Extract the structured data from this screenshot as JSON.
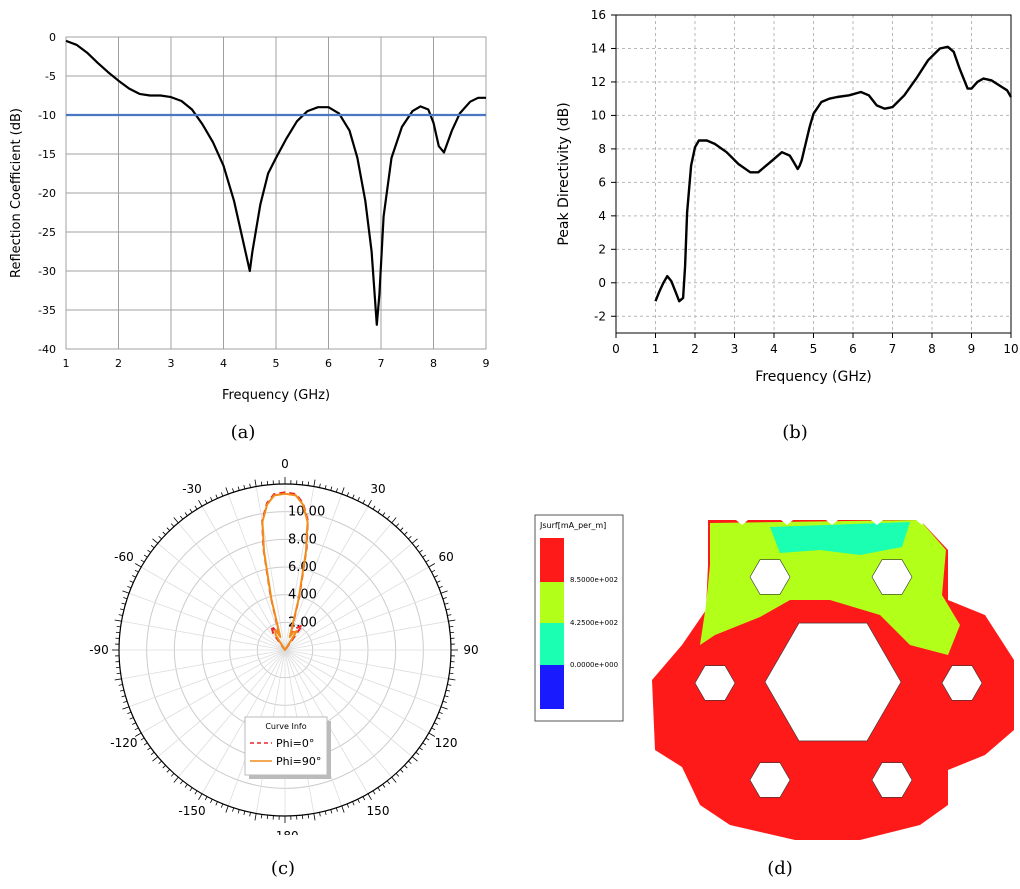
{
  "captions": {
    "a": "(a)",
    "b": "(b)",
    "c": "(c)",
    "d": "(d)"
  },
  "chart_data": [
    {
      "id": "a",
      "type": "line",
      "xlabel": "Frequency (GHz)",
      "ylabel": "Reflection Coefficient (dB)",
      "xlim": [
        1,
        9
      ],
      "ylim": [
        -40,
        0
      ],
      "xticks": [
        1,
        2,
        3,
        4,
        5,
        6,
        7,
        8,
        9
      ],
      "yticks": [
        0,
        -5,
        -10,
        -15,
        -20,
        -25,
        -30,
        -35,
        -40
      ],
      "grid": true,
      "series": [
        {
          "color": "#000000",
          "x": [
            1,
            1.2,
            1.4,
            1.6,
            1.8,
            2.0,
            2.2,
            2.4,
            2.6,
            2.8,
            3.0,
            3.2,
            3.4,
            3.6,
            3.8,
            4.0,
            4.2,
            4.35,
            4.5,
            4.55,
            4.7,
            4.85,
            5.0,
            5.2,
            5.4,
            5.6,
            5.8,
            6.0,
            6.2,
            6.4,
            6.55,
            6.7,
            6.82,
            6.92,
            6.97,
            7.05,
            7.2,
            7.4,
            7.6,
            7.75,
            7.9,
            8.0,
            8.1,
            8.2,
            8.35,
            8.5,
            8.7,
            8.85,
            9.0
          ],
          "y": [
            -0.5,
            -1.0,
            -2.0,
            -3.3,
            -4.5,
            -5.6,
            -6.6,
            -7.3,
            -7.5,
            -7.5,
            -7.7,
            -8.2,
            -9.3,
            -11.2,
            -13.5,
            -16.5,
            -21.0,
            -25.5,
            -30.0,
            -27.5,
            -21.5,
            -17.5,
            -15.5,
            -13.0,
            -10.8,
            -9.5,
            -9.0,
            -9.0,
            -9.8,
            -12.0,
            -15.5,
            -21.0,
            -27.5,
            -36.9,
            -33.0,
            -23.0,
            -15.5,
            -11.5,
            -9.5,
            -8.9,
            -9.3,
            -11.0,
            -14.0,
            -14.8,
            -12.0,
            -9.8,
            -8.3,
            -7.8,
            -7.8
          ]
        },
        {
          "color": "#4a78c0",
          "x": [
            1,
            9
          ],
          "y": [
            -10,
            -10
          ]
        }
      ]
    },
    {
      "id": "b",
      "type": "line",
      "xlabel": "Frequency (GHz)",
      "ylabel": "Peak Directivity (dB)",
      "xlim": [
        0,
        10
      ],
      "ylim": [
        -3,
        16
      ],
      "xticks": [
        0,
        1,
        2,
        3,
        4,
        5,
        6,
        7,
        8,
        9,
        10
      ],
      "yticks": [
        -2,
        0,
        2,
        4,
        6,
        8,
        10,
        12,
        14,
        16
      ],
      "grid": true,
      "series": [
        {
          "color": "#000000",
          "x": [
            1.0,
            1.1,
            1.2,
            1.3,
            1.4,
            1.5,
            1.6,
            1.7,
            1.75,
            1.8,
            1.9,
            2.0,
            2.1,
            2.3,
            2.5,
            2.8,
            3.1,
            3.4,
            3.6,
            3.9,
            4.2,
            4.4,
            4.5,
            4.6,
            4.65,
            4.7,
            4.8,
            4.9,
            5.0,
            5.2,
            5.4,
            5.6,
            5.9,
            6.2,
            6.4,
            6.6,
            6.8,
            7.0,
            7.3,
            7.6,
            7.9,
            8.2,
            8.4,
            8.55,
            8.7,
            8.9,
            9.0,
            9.15,
            9.3,
            9.5,
            9.7,
            9.9,
            10.0
          ],
          "y": [
            -1.1,
            -0.5,
            0.0,
            0.4,
            0.1,
            -0.5,
            -1.1,
            -0.9,
            1.0,
            4.2,
            7.0,
            8.1,
            8.5,
            8.5,
            8.3,
            7.8,
            7.1,
            6.6,
            6.6,
            7.2,
            7.8,
            7.6,
            7.2,
            6.8,
            7.0,
            7.3,
            8.3,
            9.3,
            10.1,
            10.8,
            11.0,
            11.1,
            11.2,
            11.4,
            11.2,
            10.6,
            10.4,
            10.5,
            11.2,
            12.2,
            13.3,
            14.0,
            14.1,
            13.8,
            12.8,
            11.6,
            11.6,
            12.0,
            12.2,
            12.1,
            11.8,
            11.5,
            11.1
          ]
        }
      ]
    },
    {
      "id": "c",
      "type": "polar",
      "radial_ticks": [
        "2.00",
        "4.00",
        "6.00",
        "8.00",
        "10.00"
      ],
      "rmax": 12,
      "angle_labels": [
        "0",
        "30",
        "60",
        "90",
        "120",
        "150",
        "-180",
        "-150",
        "-120",
        "-90",
        "-60",
        "-30"
      ],
      "angles_deg": [
        0,
        30,
        60,
        90,
        120,
        150,
        180,
        210,
        240,
        270,
        300,
        330
      ],
      "legend_title": "Curve Info",
      "series": [
        {
          "name": "Phi=0°",
          "color": "#e8262a",
          "dash": "6,4",
          "theta": [
            -35,
            -30,
            -20,
            -15,
            -12,
            -10,
            -7,
            -4,
            0,
            4,
            7,
            10,
            12,
            15,
            20,
            28,
            35
          ],
          "r": [
            1.5,
            2.0,
            1.2,
            4.0,
            7.5,
            9.5,
            10.7,
            11.3,
            11.4,
            11.3,
            10.7,
            9.5,
            7.5,
            4.0,
            1.2,
            1.8,
            2.2
          ]
        },
        {
          "name": "Phi=90°",
          "color": "#f08c1a",
          "dash": "",
          "theta": [
            -32,
            -25,
            -20,
            -15,
            -12,
            -10,
            -7,
            -4,
            0,
            4,
            7,
            10,
            12,
            15,
            20,
            25,
            32
          ],
          "r": [
            1.3,
            1.6,
            1.0,
            3.8,
            7.3,
            9.4,
            10.6,
            11.2,
            11.3,
            11.2,
            10.6,
            9.4,
            7.3,
            3.8,
            1.0,
            1.4,
            1.6
          ]
        }
      ]
    }
  ],
  "panel_d": {
    "legend_title": "Jsurf[mA_per_m]",
    "levels": [
      {
        "label": "8.5000e+002",
        "color": "#ff1a1a"
      },
      {
        "label": "4.2500e+002",
        "color": "#b2ff1a"
      },
      {
        "label": "0.0000e+000",
        "color": "#1affb2"
      },
      {
        "label": "",
        "color": "#1a1aff"
      }
    ],
    "colors": {
      "red": "#ff1a1a",
      "green": "#b2ff1a",
      "cyan": "#1affb2"
    }
  }
}
